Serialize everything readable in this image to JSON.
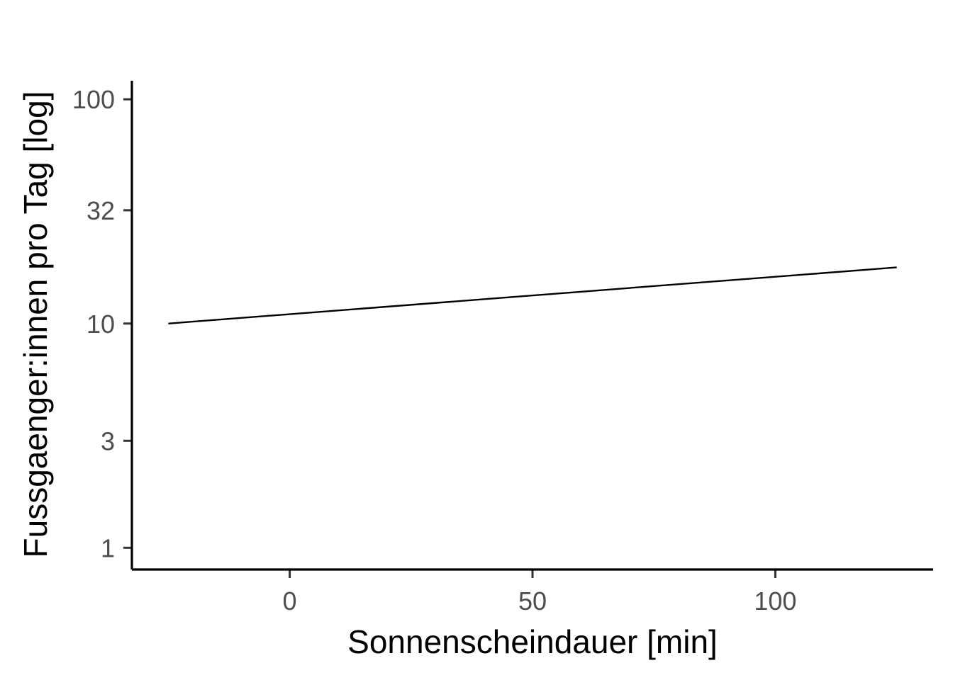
{
  "chart_data": {
    "type": "line",
    "title": "",
    "xlabel": "Sonnenscheindauer [min]",
    "ylabel": "Fussgaenger:innen pro Tag [log]",
    "y_scale": "log10",
    "xlim": [
      -32.5,
      132.5
    ],
    "ylim": [
      0.8,
      121
    ],
    "x_ticks": [
      0,
      50,
      100
    ],
    "x_tick_labels": [
      "0",
      "50",
      "100"
    ],
    "y_ticks": [
      1,
      3,
      10,
      32,
      100
    ],
    "y_tick_labels": [
      "1",
      "3",
      "10",
      "32",
      "100"
    ],
    "grid": false,
    "legend": "none",
    "series": [
      {
        "x": [
          -25,
          125
        ],
        "y": [
          10,
          17.8
        ],
        "color": "#000000"
      }
    ]
  }
}
